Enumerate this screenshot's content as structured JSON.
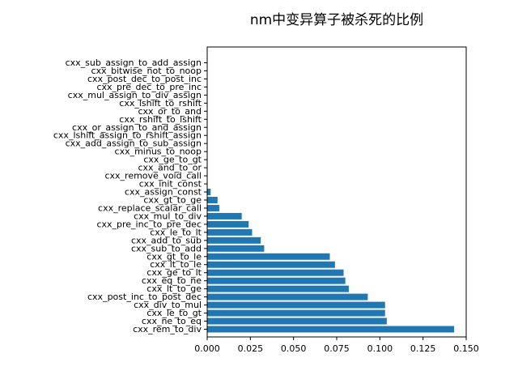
{
  "chart_data": {
    "type": "bar",
    "orientation": "horizontal",
    "title": "nm中变异算子被杀死的比例",
    "xlabel": "",
    "ylabel": "",
    "xlim": [
      0,
      0.15
    ],
    "xticks": [
      "0.000",
      "0.025",
      "0.050",
      "0.075",
      "0.100",
      "0.125",
      "0.150"
    ],
    "xtick_values": [
      0,
      0.025,
      0.05,
      0.075,
      0.1,
      0.125,
      0.15
    ],
    "grid": false,
    "bar_color": "#1f77b4",
    "categories": [
      "cxx_rem_to_div",
      "cxx_ne_to_eq",
      "cxx_le_to_gt",
      "cxx_div_to_mul",
      "cxx_post_inc_to_post_dec",
      "cxx_lt_to_ge",
      "cxx_eq_to_ne",
      "cxx_ge_to_lt",
      "cxx_lt_to_le",
      "cxx_gt_to_le",
      "cxx_sub_to_add",
      "cxx_add_to_sub",
      "cxx_le_to_lt",
      "cxx_pre_inc_to_pre_dec",
      "cxx_mul_to_div",
      "cxx_replace_scalar_call",
      "cxx_gt_to_ge",
      "cxx_assign_const",
      "cxx_init_const",
      "cxx_remove_void_call",
      "cxx_and_to_or",
      "cxx_ge_to_gt",
      "cxx_minus_to_noop",
      "cxx_add_assign_to_sub_assign",
      "cxx_lshift_assign_to_rshift_assign",
      "cxx_or_assign_to_and_assign",
      "cxx_rshift_to_lshift",
      "cxx_or_to_and",
      "cxx_lshift_to_rshift",
      "cxx_mul_assign_to_div_assign",
      "cxx_pre_dec_to_pre_inc",
      "cxx_post_dec_to_post_inc",
      "cxx_bitwise_not_to_noop",
      "cxx_sub_assign_to_add_assign"
    ],
    "values": [
      0.143,
      0.104,
      0.103,
      0.103,
      0.093,
      0.082,
      0.08,
      0.079,
      0.074,
      0.071,
      0.033,
      0.031,
      0.026,
      0.024,
      0.02,
      0.007,
      0.006,
      0.002,
      0,
      0,
      0,
      0,
      0,
      0,
      0,
      0,
      0,
      0,
      0,
      0,
      0,
      0,
      0,
      0
    ]
  }
}
